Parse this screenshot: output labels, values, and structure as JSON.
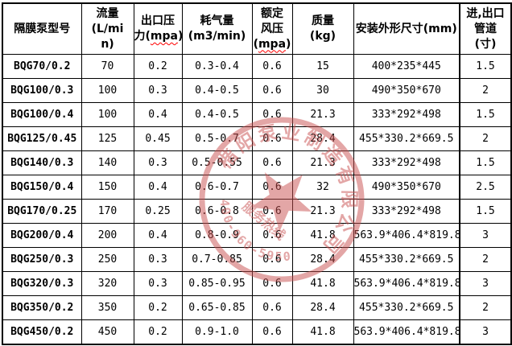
{
  "table": {
    "columns": [
      {
        "id": "model",
        "label": "隔膜泵型号",
        "label_lines": [
          "隔膜泵型号"
        ]
      },
      {
        "id": "flow",
        "label": "流量(L/min)",
        "label_lines": [
          "流量",
          "(L/mi",
          "n)"
        ]
      },
      {
        "id": "outlet-pressure",
        "label": "出口压力(mpa)",
        "label_lines": [
          "出口压",
          "力(mpa)"
        ],
        "wavy": "mpa"
      },
      {
        "id": "air-consumption",
        "label": "耗气量(m3/min)",
        "label_lines": [
          "耗气量",
          "(m3/min)"
        ]
      },
      {
        "id": "rated-air-pressure",
        "label": "额定风压(mpa)",
        "label_lines": [
          "额定",
          "风压",
          "(mpa)"
        ],
        "wavy": "mpa"
      },
      {
        "id": "mass",
        "label": "质量(kg)",
        "label_lines": [
          "质量",
          "(kg)"
        ]
      },
      {
        "id": "dimensions",
        "label": "安装外形尺寸(mm)",
        "label_lines": [
          "安装外形尺寸(mm)"
        ]
      },
      {
        "id": "pipe-size",
        "label": "进,出口管道(寸)",
        "label_lines": [
          "进,出口",
          "管道",
          "(寸)"
        ]
      }
    ],
    "rows": [
      [
        "BQG70/0.2",
        "70",
        "0.2",
        "0.3-0.4",
        "0.6",
        "15",
        "400*235*445",
        "1.5"
      ],
      [
        "BQG100/0.3",
        "100",
        "0.3",
        "0.4-0.5",
        "0.6",
        "30",
        "490*350*670",
        "2"
      ],
      [
        "BQG100/0.4",
        "100",
        "0.4",
        "0.4-0.5",
        "0.6",
        "21.3",
        "333*292*498",
        "1.5"
      ],
      [
        "BQG125/0.45",
        "125",
        "0.45",
        "0.5-0.7",
        "0.6",
        "28.4",
        "455*330.2*669.5",
        "2"
      ],
      [
        "BQG140/0.3",
        "140",
        "0.3",
        "0.5-0.55",
        "0.6",
        "21.3",
        "333*292*498",
        "1.5"
      ],
      [
        "BQG150/0.4",
        "150",
        "0.4",
        "0.6-0.7",
        "0.6",
        "32",
        "490*350*670",
        "2.5"
      ],
      [
        "BQG170/0.25",
        "170",
        "0.25",
        "0.6-0.8",
        "0.6",
        "21.3",
        "333*292*498",
        "1.5"
      ],
      [
        "BQG200/0.4",
        "200",
        "0.4",
        "0.8-0.9",
        "0.6",
        "41.8",
        "563.9*406.4*819.8",
        "3"
      ],
      [
        "BQG250/0.3",
        "250",
        "0.3",
        "0.7-0.85",
        "0.6",
        "28.4",
        "455*330.2*669.5",
        "2"
      ],
      [
        "BQG320/0.3",
        "320",
        "0.3",
        "0.85-0.95",
        "0.6",
        "41.8",
        "563.9*406.4*819.8",
        "3"
      ],
      [
        "BQG350/0.2",
        "350",
        "0.2",
        "0.65-0.85",
        "0.6",
        "28.4",
        "455*330.2*669.5",
        "2"
      ],
      [
        "BQG450/0.2",
        "450",
        "0.2",
        "0.9-1.0",
        "0.6",
        "41.8",
        "563.9*406.4*819.8",
        "3"
      ]
    ]
  },
  "watermark": {
    "company_arc_text": "楷阳泵业制造有限公司",
    "hotline_label": "服务热线",
    "hotline_number": "400-960-5950",
    "color": "#c94f4f"
  }
}
